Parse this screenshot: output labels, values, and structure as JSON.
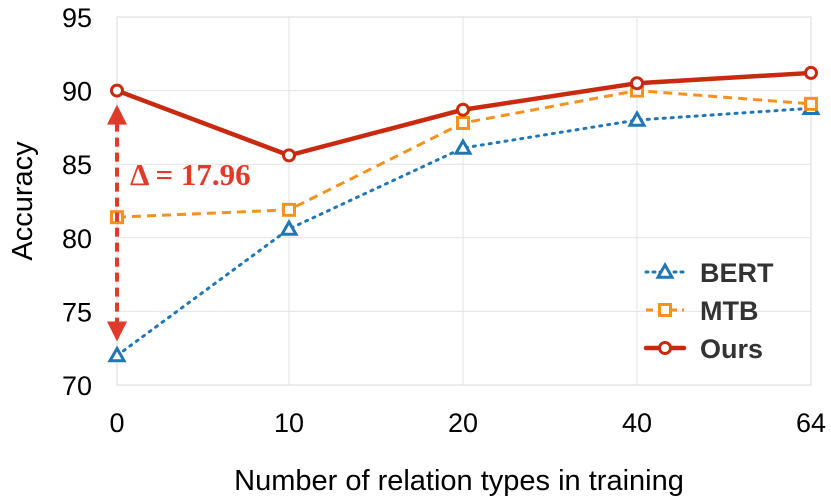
{
  "chart_data": {
    "type": "line",
    "title": "",
    "xlabel": "Number of relation types in training",
    "ylabel": "Accuracy",
    "categories": [
      "0",
      "10",
      "20",
      "40",
      "64"
    ],
    "ylim": [
      70,
      95
    ],
    "yticks": [
      70,
      75,
      80,
      85,
      90,
      95
    ],
    "grid": true,
    "legend_position": "bottom-right",
    "series": [
      {
        "name": "BERT",
        "marker": "triangle",
        "line": "dotted",
        "color": "#1f77b4",
        "values": [
          72.0,
          80.6,
          86.1,
          88.0,
          88.8
        ]
      },
      {
        "name": "MTB",
        "marker": "square",
        "line": "dashed",
        "color": "#f5921e",
        "values": [
          81.4,
          81.9,
          87.8,
          90.0,
          89.1
        ]
      },
      {
        "name": "Ours",
        "marker": "circle",
        "line": "solid",
        "color": "#c8290f",
        "values": [
          90.0,
          85.6,
          88.7,
          90.5,
          91.2
        ]
      }
    ],
    "annotation": {
      "text": "Δ = 17.96",
      "category": "0",
      "from": 72.0,
      "to": 90.0,
      "color": "#e03a2a"
    }
  }
}
